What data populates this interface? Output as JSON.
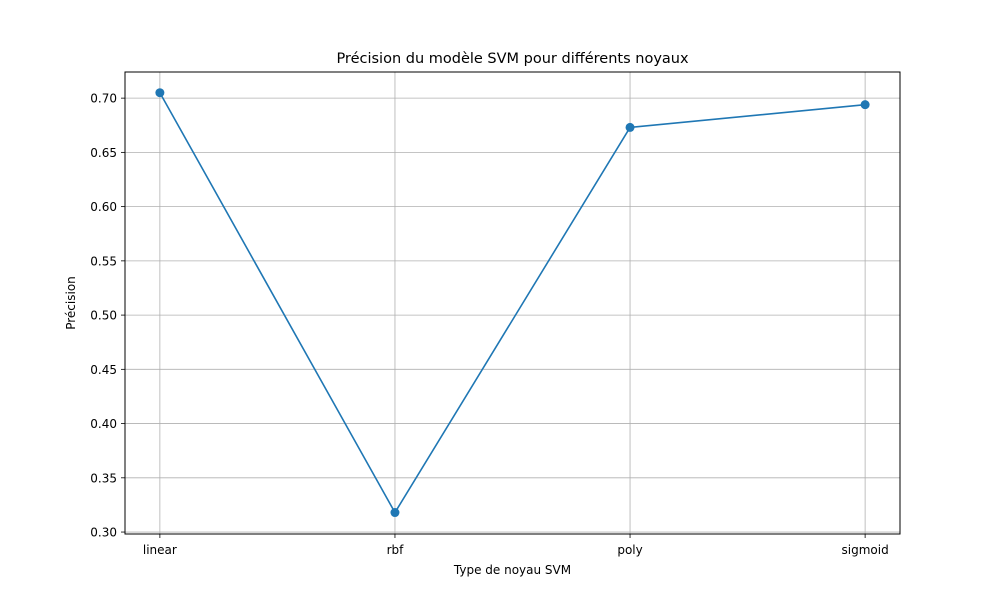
{
  "chart_data": {
    "type": "line",
    "title": "Précision du modèle SVM pour différents noyaux",
    "xlabel": "Type de noyau SVM",
    "ylabel": "Précision",
    "categories": [
      "linear",
      "rbf",
      "poly",
      "sigmoid"
    ],
    "series": [
      {
        "values": [
          0.705,
          0.318,
          0.673,
          0.694
        ],
        "color": "#1f77b4",
        "marker": "circle"
      }
    ],
    "ylim": [
      0.2982,
      0.7241
    ],
    "yticks": [
      0.3,
      0.35,
      0.4,
      0.45,
      0.5,
      0.55,
      0.6,
      0.65,
      0.7
    ],
    "ytick_labels": [
      "0.30",
      "0.35",
      "0.40",
      "0.45",
      "0.50",
      "0.55",
      "0.60",
      "0.65",
      "0.70"
    ],
    "grid": true,
    "legend": "none"
  }
}
